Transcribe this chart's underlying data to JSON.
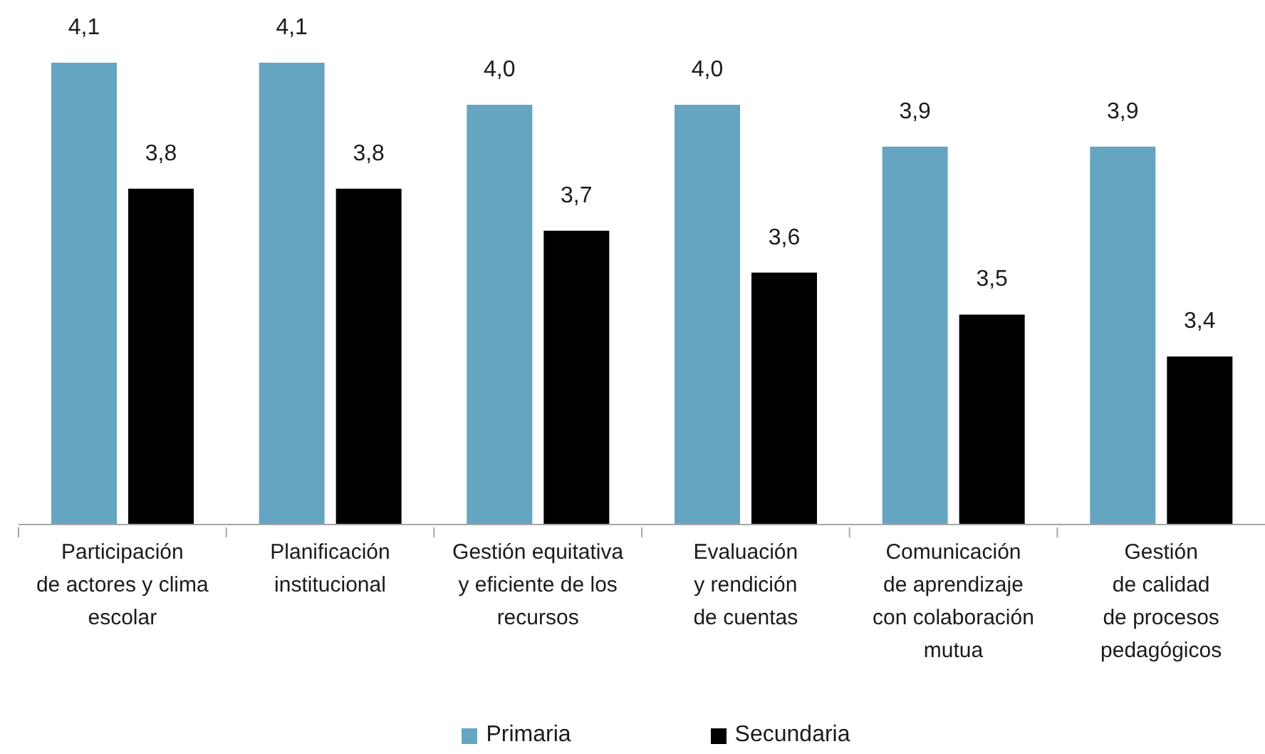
{
  "chart_data": {
    "type": "bar",
    "categories": [
      "Participación\nde actores y clima\nescolar",
      "Planificación\ninstitucional",
      "Gestión equitativa\ny eficiente de los\nrecursos",
      "Evaluación\ny rendición\nde cuentas",
      "Comunicación\nde aprendizaje\ncon colaboración\nmutua",
      "Gestión\nde calidad\nde procesos\npedagógicos"
    ],
    "series": [
      {
        "name": "Primaria",
        "color": "#65a5c1",
        "values": [
          4.1,
          4.1,
          4.0,
          4.0,
          3.9,
          3.9
        ],
        "value_labels": [
          "4,1",
          "4,1",
          "4,0",
          "4,0",
          "3,9",
          "3,9"
        ]
      },
      {
        "name": "Secundaria",
        "color": "#000000",
        "values": [
          3.8,
          3.8,
          3.7,
          3.6,
          3.5,
          3.4
        ],
        "value_labels": [
          "3,8",
          "3,8",
          "3,7",
          "3,6",
          "3,5",
          "3,4"
        ]
      }
    ],
    "ylim": [
      3,
      4.1
    ],
    "tick_labels": "x",
    "legend": "bottom"
  }
}
